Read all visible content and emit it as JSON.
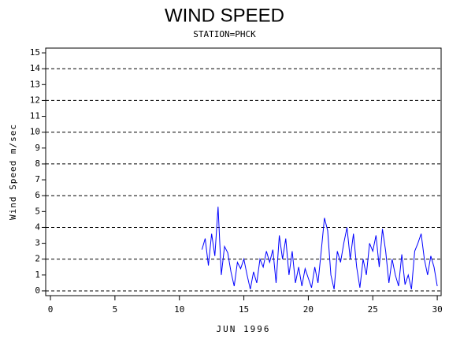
{
  "chart_data": {
    "type": "line",
    "title": "WIND SPEED",
    "subtitle": "STATION=PHCK",
    "y_label": "Wind Speed m/sec",
    "x_label": "JUN 1996",
    "x": [
      11.75,
      12,
      12.25,
      12.5,
      12.75,
      13,
      13.25,
      13.5,
      13.75,
      14,
      14.25,
      14.5,
      14.75,
      15,
      15.25,
      15.5,
      15.75,
      16,
      16.25,
      16.5,
      16.75,
      17,
      17.25,
      17.5,
      17.75,
      18,
      18.25,
      18.5,
      18.75,
      19,
      19.25,
      19.5,
      19.75,
      20,
      20.25,
      20.5,
      20.75,
      21,
      21.25,
      21.5,
      21.75,
      22,
      22.25,
      22.5,
      22.75,
      23,
      23.25,
      23.5,
      23.75,
      24,
      24.25,
      24.5,
      24.75,
      25,
      25.25,
      25.5,
      25.75,
      26,
      26.25,
      26.5,
      26.75,
      27,
      27.25,
      27.5,
      27.75,
      28,
      28.25,
      28.5,
      28.75,
      29,
      29.25,
      29.5,
      29.75,
      30
    ],
    "series": [
      {
        "color": "#0000ff",
        "values": [
          2.6,
          3.3,
          1.6,
          3.6,
          2.2,
          5.3,
          1.0,
          2.8,
          2.4,
          1.2,
          0.3,
          1.8,
          1.4,
          2.0,
          1.0,
          0.1,
          1.2,
          0.5,
          2.0,
          1.5,
          2.5,
          1.8,
          2.6,
          0.5,
          3.5,
          2.0,
          3.3,
          1.0,
          2.5,
          0.5,
          1.5,
          0.3,
          1.4,
          0.8,
          0.2,
          1.5,
          0.5,
          2.5,
          4.6,
          3.8,
          1.0,
          0.1,
          2.5,
          1.8,
          3.0,
          4.0,
          2.0,
          3.6,
          1.5,
          0.2,
          2.0,
          1.0,
          3.0,
          2.5,
          3.5,
          1.5,
          3.9,
          2.5,
          0.5,
          2.0,
          1.0,
          0.3,
          2.3,
          0.4,
          1.0,
          0.1,
          2.5,
          3.0,
          3.6,
          2.0,
          1.0,
          2.2,
          1.5,
          0.3
        ]
      }
    ],
    "xlim": [
      -0.37,
      30.3
    ],
    "xticks": [
      0,
      5,
      10,
      15,
      20,
      25,
      30
    ],
    "ylim": [
      -0.3,
      15.3
    ],
    "yticks": [
      0,
      1,
      2,
      3,
      4,
      5,
      6,
      7,
      8,
      9,
      10,
      11,
      12,
      13,
      14,
      15
    ],
    "ygrid": [
      0,
      2,
      4,
      6,
      8,
      10,
      12,
      14
    ]
  }
}
